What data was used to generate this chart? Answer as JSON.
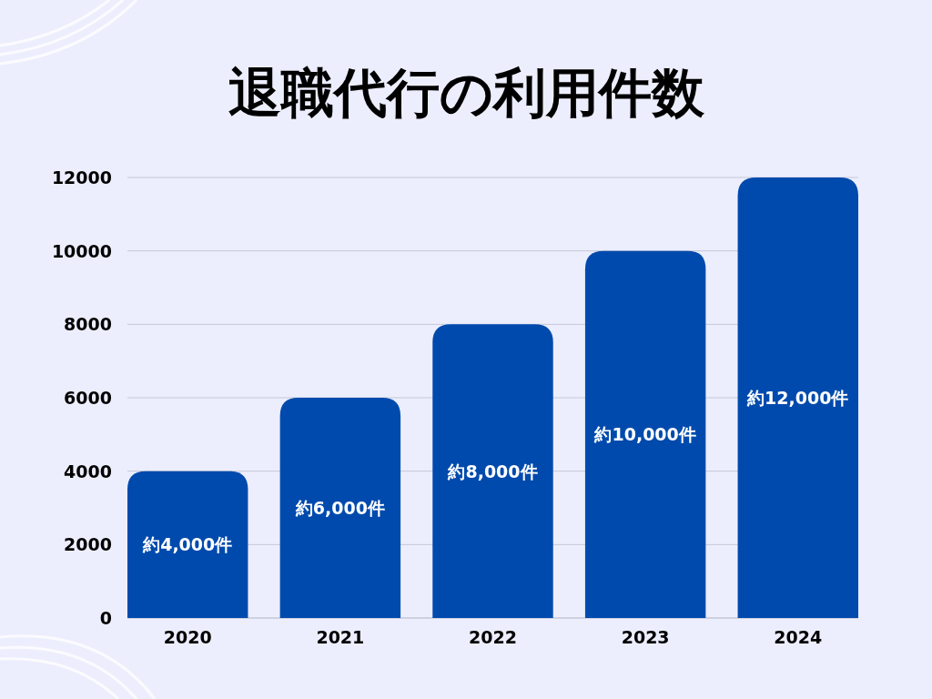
{
  "chart_data": {
    "type": "bar",
    "title": "退職代行の利用件数",
    "categories": [
      "2020",
      "2021",
      "2022",
      "2023",
      "2024"
    ],
    "values": [
      4000,
      6000,
      8000,
      10000,
      12000
    ],
    "value_labels": [
      "約4,000件",
      "約6,000件",
      "約8,000件",
      "約10,000件",
      "約12,000件"
    ],
    "color": "#004aad",
    "ylim": [
      0,
      12000
    ],
    "yticks": [
      0,
      2000,
      4000,
      6000,
      8000,
      10000,
      12000
    ],
    "grid": "y"
  }
}
